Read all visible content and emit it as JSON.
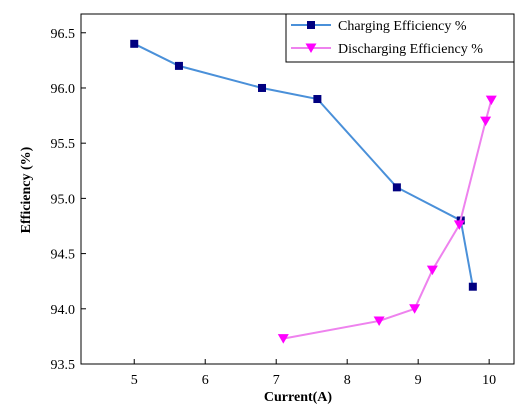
{
  "chart_data": {
    "type": "line",
    "xlabel": "Current(A)",
    "ylabel": "Efficiency (%)",
    "xlim": [
      4.25,
      10.35
    ],
    "ylim": [
      93.5,
      96.67
    ],
    "xticks": [
      5,
      6,
      7,
      8,
      9,
      10
    ],
    "yticks": [
      93.5,
      94.0,
      94.5,
      95.0,
      95.5,
      96.0,
      96.5
    ],
    "ytick_labels": [
      "93.5",
      "94.0",
      "94.5",
      "95.0",
      "95.5",
      "96.0",
      "96.5"
    ],
    "grid": false,
    "legend_position": "top-right",
    "series": [
      {
        "name": "Charging Efficiency %",
        "color": "#4a90d9",
        "marker_color": "#000080",
        "marker": "square",
        "x": [
          5.0,
          5.63,
          6.8,
          7.58,
          8.7,
          9.6,
          9.77
        ],
        "y": [
          96.4,
          96.2,
          96.0,
          95.9,
          95.1,
          94.8,
          94.2
        ]
      },
      {
        "name": "Discharging Efficiency %",
        "color": "#ee82ee",
        "marker_color": "#ff00ff",
        "marker": "triangle-down",
        "x": [
          7.1,
          8.45,
          8.95,
          9.2,
          9.58,
          9.95,
          10.03
        ],
        "y": [
          93.73,
          93.89,
          94.0,
          94.35,
          94.76,
          95.7,
          95.89
        ]
      }
    ]
  }
}
